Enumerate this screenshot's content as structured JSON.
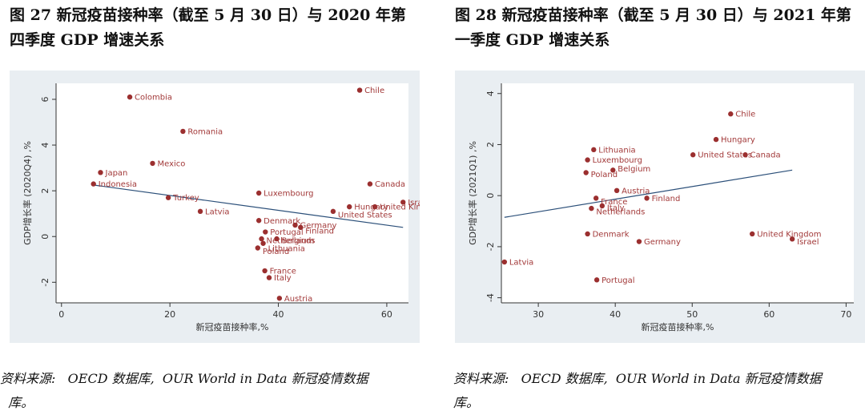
{
  "colors": {
    "plot_bg": "#e9eef2",
    "frame_bg": "#ffffff",
    "point": "#9b2f2f",
    "label": "#a23939",
    "fit_line": "#2b4f79",
    "axis": "#333333"
  },
  "figures": [
    {
      "title_line1": "图 27 新冠疫苗接种率（截至 5 月 30 日）与 2020 年第",
      "title_line2": "四季度 GDP 增速关系",
      "source_line1": "资料来源:   OECD 数据库,  OUR World in Data 新冠疫情数据",
      "source_line2": "  库。"
    },
    {
      "title_line1": "图 28 新冠疫苗接种率（截至 5 月 30 日）与 2021 年第",
      "title_line2": "一季度 GDP 增速关系",
      "source_line1": "资料来源:   OECD 数据库,  OUR World in Data 新冠疫情数据",
      "source_line2": "库。"
    }
  ],
  "chart_data": [
    {
      "type": "scatter",
      "title": "新冠疫苗接种率（截至 5 月 30 日）与 2020 年第四季度 GDP 增速关系",
      "xlabel": "新冠疫苗接种率,%",
      "ylabel": "GDP增长率 (2020Q4) ,%",
      "xlim": [
        -1,
        64
      ],
      "ylim": [
        -2.9,
        6.7
      ],
      "xticks": [
        0,
        20,
        40,
        60
      ],
      "yticks": [
        -2,
        0,
        2,
        4,
        6
      ],
      "grid": false,
      "fit_line": {
        "x": [
          6,
          63
        ],
        "y": [
          2.25,
          0.4
        ]
      },
      "points": [
        {
          "label": "Colombia",
          "x": 12.6,
          "y": 6.1
        },
        {
          "label": "Chile",
          "x": 55.0,
          "y": 6.4
        },
        {
          "label": "Romania",
          "x": 22.4,
          "y": 4.6
        },
        {
          "label": "Mexico",
          "x": 16.8,
          "y": 3.2
        },
        {
          "label": "Japan",
          "x": 7.2,
          "y": 2.8
        },
        {
          "label": "Indonesia",
          "x": 5.9,
          "y": 2.3
        },
        {
          "label": "Turkey",
          "x": 19.7,
          "y": 1.7
        },
        {
          "label": "Latvia",
          "x": 25.6,
          "y": 1.1
        },
        {
          "label": "Canada",
          "x": 56.9,
          "y": 2.3
        },
        {
          "label": "Luxembourg",
          "x": 36.4,
          "y": 1.9
        },
        {
          "label": "Hungary",
          "x": 53.1,
          "y": 1.3
        },
        {
          "label": "United Kingdom",
          "x": 57.8,
          "y": 1.3
        },
        {
          "label": "Israel",
          "x": 63.0,
          "y": 1.5
        },
        {
          "label": "United States",
          "x": 50.1,
          "y": 1.1
        },
        {
          "label": "Denmark",
          "x": 36.4,
          "y": 0.7
        },
        {
          "label": "Germany",
          "x": 43.1,
          "y": 0.5
        },
        {
          "label": "Finland",
          "x": 44.1,
          "y": 0.4
        },
        {
          "label": "Portugal",
          "x": 37.6,
          "y": 0.2
        },
        {
          "label": "Netherlands",
          "x": 36.9,
          "y": -0.1
        },
        {
          "label": "Belgium",
          "x": 39.7,
          "y": -0.1
        },
        {
          "label": "Lithuania",
          "x": 37.2,
          "y": -0.3
        },
        {
          "label": "Poland",
          "x": 36.2,
          "y": -0.5
        },
        {
          "label": "France",
          "x": 37.5,
          "y": -1.5
        },
        {
          "label": "Italy",
          "x": 38.3,
          "y": -1.8
        },
        {
          "label": "Austria",
          "x": 40.2,
          "y": -2.7
        }
      ]
    },
    {
      "type": "scatter",
      "title": "新冠疫苗接种率（截至 5 月 30 日）与 2021 年第一季度 GDP 增速关系",
      "xlabel": "新冠疫苗接种率,%",
      "ylabel": "GDP增长率 (2021Q1) ,%",
      "xlim": [
        25.2,
        71
      ],
      "ylim": [
        -4.2,
        4.4
      ],
      "xticks": [
        30,
        40,
        50,
        60,
        70
      ],
      "yticks": [
        -4,
        -2,
        0,
        2,
        4
      ],
      "grid": false,
      "fit_line": {
        "x": [
          25.6,
          63
        ],
        "y": [
          -0.85,
          1.0
        ]
      },
      "points": [
        {
          "label": "Chile",
          "x": 55.0,
          "y": 3.2
        },
        {
          "label": "Hungary",
          "x": 53.1,
          "y": 2.2
        },
        {
          "label": "United States",
          "x": 50.1,
          "y": 1.6
        },
        {
          "label": "Canada",
          "x": 56.9,
          "y": 1.6
        },
        {
          "label": "Lithuania",
          "x": 37.2,
          "y": 1.8
        },
        {
          "label": "Luxembourg",
          "x": 36.4,
          "y": 1.4
        },
        {
          "label": "Poland",
          "x": 36.2,
          "y": 0.9
        },
        {
          "label": "Belgium",
          "x": 39.7,
          "y": 1.0
        },
        {
          "label": "Austria",
          "x": 40.2,
          "y": 0.2
        },
        {
          "label": "France",
          "x": 37.5,
          "y": -0.1
        },
        {
          "label": "Finland",
          "x": 44.1,
          "y": -0.1
        },
        {
          "label": "Italy",
          "x": 38.3,
          "y": -0.4
        },
        {
          "label": "Netherlands",
          "x": 36.9,
          "y": -0.5
        },
        {
          "label": "Denmark",
          "x": 36.4,
          "y": -1.5
        },
        {
          "label": "Germany",
          "x": 43.1,
          "y": -1.8
        },
        {
          "label": "United Kingdom",
          "x": 57.8,
          "y": -1.5
        },
        {
          "label": "Israel",
          "x": 63.0,
          "y": -1.7
        },
        {
          "label": "Latvia",
          "x": 25.6,
          "y": -2.6
        },
        {
          "label": "Portugal",
          "x": 37.6,
          "y": -3.3
        }
      ]
    }
  ]
}
